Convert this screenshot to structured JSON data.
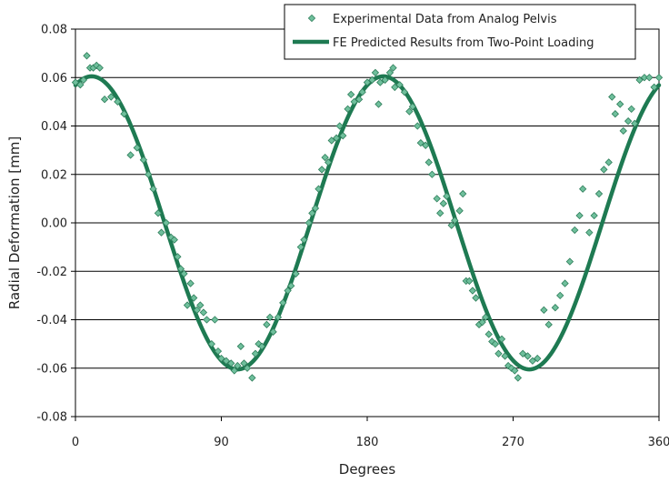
{
  "chart_data": {
    "type": "scatter",
    "title": "",
    "xlabel": "Degrees",
    "ylabel": "Radial Deformation [mm]",
    "xlim": [
      0,
      360
    ],
    "ylim": [
      -0.08,
      0.08
    ],
    "x_ticks": [
      0,
      90,
      180,
      270,
      360
    ],
    "x_tick_labels": [
      "0",
      "90",
      "180",
      "270",
      "360"
    ],
    "y_ticks": [
      -0.08,
      -0.06,
      -0.04,
      -0.02,
      0.0,
      0.02,
      0.04,
      0.06,
      0.08
    ],
    "y_tick_labels": [
      "-0.08",
      "-0.06",
      "-0.04",
      "-0.02",
      "0.00",
      "0.02",
      "0.04",
      "0.06",
      "0.08"
    ],
    "grid": "horizontal",
    "legend_position": "top-right",
    "legend": [
      "Experimental Data from Analog Pelvis",
      "FE Predicted Results from Two-Point Loading"
    ],
    "series": [
      {
        "name": "Experimental Data from Analog Pelvis",
        "kind": "scatter",
        "marker": "diamond",
        "color": "#6fbf9c",
        "edge_color": "#2e7d5a",
        "points": [
          [
            0,
            0.058
          ],
          [
            3,
            0.057
          ],
          [
            5,
            0.059
          ],
          [
            7,
            0.069
          ],
          [
            9,
            0.064
          ],
          [
            11,
            0.064
          ],
          [
            13,
            0.065
          ],
          [
            15,
            0.064
          ],
          [
            18,
            0.051
          ],
          [
            22,
            0.052
          ],
          [
            26,
            0.05
          ],
          [
            30,
            0.045
          ],
          [
            34,
            0.028
          ],
          [
            38,
            0.031
          ],
          [
            42,
            0.026
          ],
          [
            45,
            0.02
          ],
          [
            48,
            0.014
          ],
          [
            51,
            0.004
          ],
          [
            53,
            -0.004
          ],
          [
            56,
            0.0
          ],
          [
            59,
            -0.006
          ],
          [
            61,
            -0.007
          ],
          [
            63,
            -0.014
          ],
          [
            65,
            -0.019
          ],
          [
            67,
            -0.021
          ],
          [
            69,
            -0.034
          ],
          [
            71,
            -0.025
          ],
          [
            73,
            -0.031
          ],
          [
            75,
            -0.036
          ],
          [
            77,
            -0.034
          ],
          [
            79,
            -0.037
          ],
          [
            81,
            -0.04
          ],
          [
            84,
            -0.05
          ],
          [
            86,
            -0.04
          ],
          [
            88,
            -0.053
          ],
          [
            90,
            -0.056
          ],
          [
            93,
            -0.057
          ],
          [
            96,
            -0.058
          ],
          [
            98,
            -0.061
          ],
          [
            100,
            -0.059
          ],
          [
            102,
            -0.051
          ],
          [
            104,
            -0.058
          ],
          [
            106,
            -0.06
          ],
          [
            109,
            -0.064
          ],
          [
            111,
            -0.054
          ],
          [
            113,
            -0.05
          ],
          [
            115,
            -0.051
          ],
          [
            118,
            -0.042
          ],
          [
            120,
            -0.039
          ],
          [
            122,
            -0.045
          ],
          [
            125,
            -0.039
          ],
          [
            128,
            -0.033
          ],
          [
            131,
            -0.028
          ],
          [
            133,
            -0.026
          ],
          [
            136,
            -0.021
          ],
          [
            139,
            -0.01
          ],
          [
            141,
            -0.007
          ],
          [
            144,
            0.0
          ],
          [
            146,
            0.004
          ],
          [
            148,
            0.006
          ],
          [
            150,
            0.014
          ],
          [
            152,
            0.022
          ],
          [
            154,
            0.027
          ],
          [
            156,
            0.025
          ],
          [
            158,
            0.034
          ],
          [
            161,
            0.035
          ],
          [
            163,
            0.04
          ],
          [
            165,
            0.036
          ],
          [
            168,
            0.047
          ],
          [
            170,
            0.053
          ],
          [
            172,
            0.05
          ],
          [
            175,
            0.051
          ],
          [
            177,
            0.054
          ],
          [
            180,
            0.058
          ],
          [
            183,
            0.059
          ],
          [
            185,
            0.062
          ],
          [
            187,
            0.049
          ],
          [
            188,
            0.058
          ],
          [
            191,
            0.059
          ],
          [
            194,
            0.062
          ],
          [
            196,
            0.064
          ],
          [
            197,
            0.056
          ],
          [
            200,
            0.057
          ],
          [
            203,
            0.054
          ],
          [
            206,
            0.046
          ],
          [
            208,
            0.048
          ],
          [
            211,
            0.04
          ],
          [
            213,
            0.033
          ],
          [
            216,
            0.032
          ],
          [
            218,
            0.025
          ],
          [
            220,
            0.02
          ],
          [
            223,
            0.01
          ],
          [
            225,
            0.004
          ],
          [
            227,
            0.008
          ],
          [
            229,
            0.011
          ],
          [
            232,
            -0.001
          ],
          [
            234,
            0.001
          ],
          [
            237,
            0.005
          ],
          [
            239,
            0.012
          ],
          [
            241,
            -0.024
          ],
          [
            243,
            -0.024
          ],
          [
            245,
            -0.028
          ],
          [
            247,
            -0.031
          ],
          [
            249,
            -0.042
          ],
          [
            251,
            -0.041
          ],
          [
            253,
            -0.039
          ],
          [
            255,
            -0.046
          ],
          [
            257,
            -0.049
          ],
          [
            259,
            -0.05
          ],
          [
            261,
            -0.054
          ],
          [
            263,
            -0.048
          ],
          [
            265,
            -0.055
          ],
          [
            267,
            -0.059
          ],
          [
            269,
            -0.06
          ],
          [
            271,
            -0.061
          ],
          [
            273,
            -0.064
          ],
          [
            276,
            -0.054
          ],
          [
            279,
            -0.055
          ],
          [
            282,
            -0.057
          ],
          [
            285,
            -0.056
          ],
          [
            289,
            -0.036
          ],
          [
            292,
            -0.042
          ],
          [
            296,
            -0.035
          ],
          [
            299,
            -0.03
          ],
          [
            302,
            -0.025
          ],
          [
            305,
            -0.016
          ],
          [
            308,
            -0.003
          ],
          [
            311,
            0.003
          ],
          [
            313,
            0.014
          ],
          [
            317,
            -0.004
          ],
          [
            320,
            0.003
          ],
          [
            323,
            0.012
          ],
          [
            326,
            0.022
          ],
          [
            329,
            0.025
          ],
          [
            331,
            0.052
          ],
          [
            333,
            0.045
          ],
          [
            336,
            0.049
          ],
          [
            338,
            0.038
          ],
          [
            341,
            0.042
          ],
          [
            343,
            0.047
          ],
          [
            345,
            0.041
          ],
          [
            348,
            0.059
          ],
          [
            351,
            0.06
          ],
          [
            354,
            0.06
          ],
          [
            357,
            0.056
          ],
          [
            360,
            0.06
          ]
        ]
      },
      {
        "name": "FE Predicted Results from Two-Point Loading",
        "kind": "line",
        "color": "#1e7a52",
        "function": "0.0605 * cos(2 * (x - 10) degrees)",
        "points": [
          [
            0,
            0.0568
          ],
          [
            10,
            0.0605
          ],
          [
            20,
            0.0568
          ],
          [
            30,
            0.0463
          ],
          [
            40,
            0.0302
          ],
          [
            50,
            0.0105
          ],
          [
            55,
            0.0
          ],
          [
            60,
            -0.0105
          ],
          [
            70,
            -0.0302
          ],
          [
            80,
            -0.0463
          ],
          [
            90,
            -0.0568
          ],
          [
            100,
            -0.0605
          ],
          [
            110,
            -0.0568
          ],
          [
            120,
            -0.0463
          ],
          [
            130,
            -0.0302
          ],
          [
            140,
            -0.0105
          ],
          [
            145,
            0.0
          ],
          [
            150,
            0.0105
          ],
          [
            160,
            0.0302
          ],
          [
            170,
            0.0463
          ],
          [
            180,
            0.0568
          ],
          [
            190,
            0.0605
          ],
          [
            200,
            0.0568
          ],
          [
            210,
            0.0463
          ],
          [
            220,
            0.0302
          ],
          [
            230,
            0.0105
          ],
          [
            235,
            0.0
          ],
          [
            240,
            -0.0105
          ],
          [
            250,
            -0.0302
          ],
          [
            260,
            -0.0463
          ],
          [
            270,
            -0.0568
          ],
          [
            280,
            -0.0605
          ],
          [
            290,
            -0.0568
          ],
          [
            300,
            -0.0463
          ],
          [
            310,
            -0.0302
          ],
          [
            320,
            -0.0105
          ],
          [
            325,
            0.0
          ],
          [
            330,
            0.0105
          ],
          [
            340,
            0.0302
          ],
          [
            350,
            0.0463
          ],
          [
            360,
            0.0568
          ]
        ]
      }
    ]
  }
}
